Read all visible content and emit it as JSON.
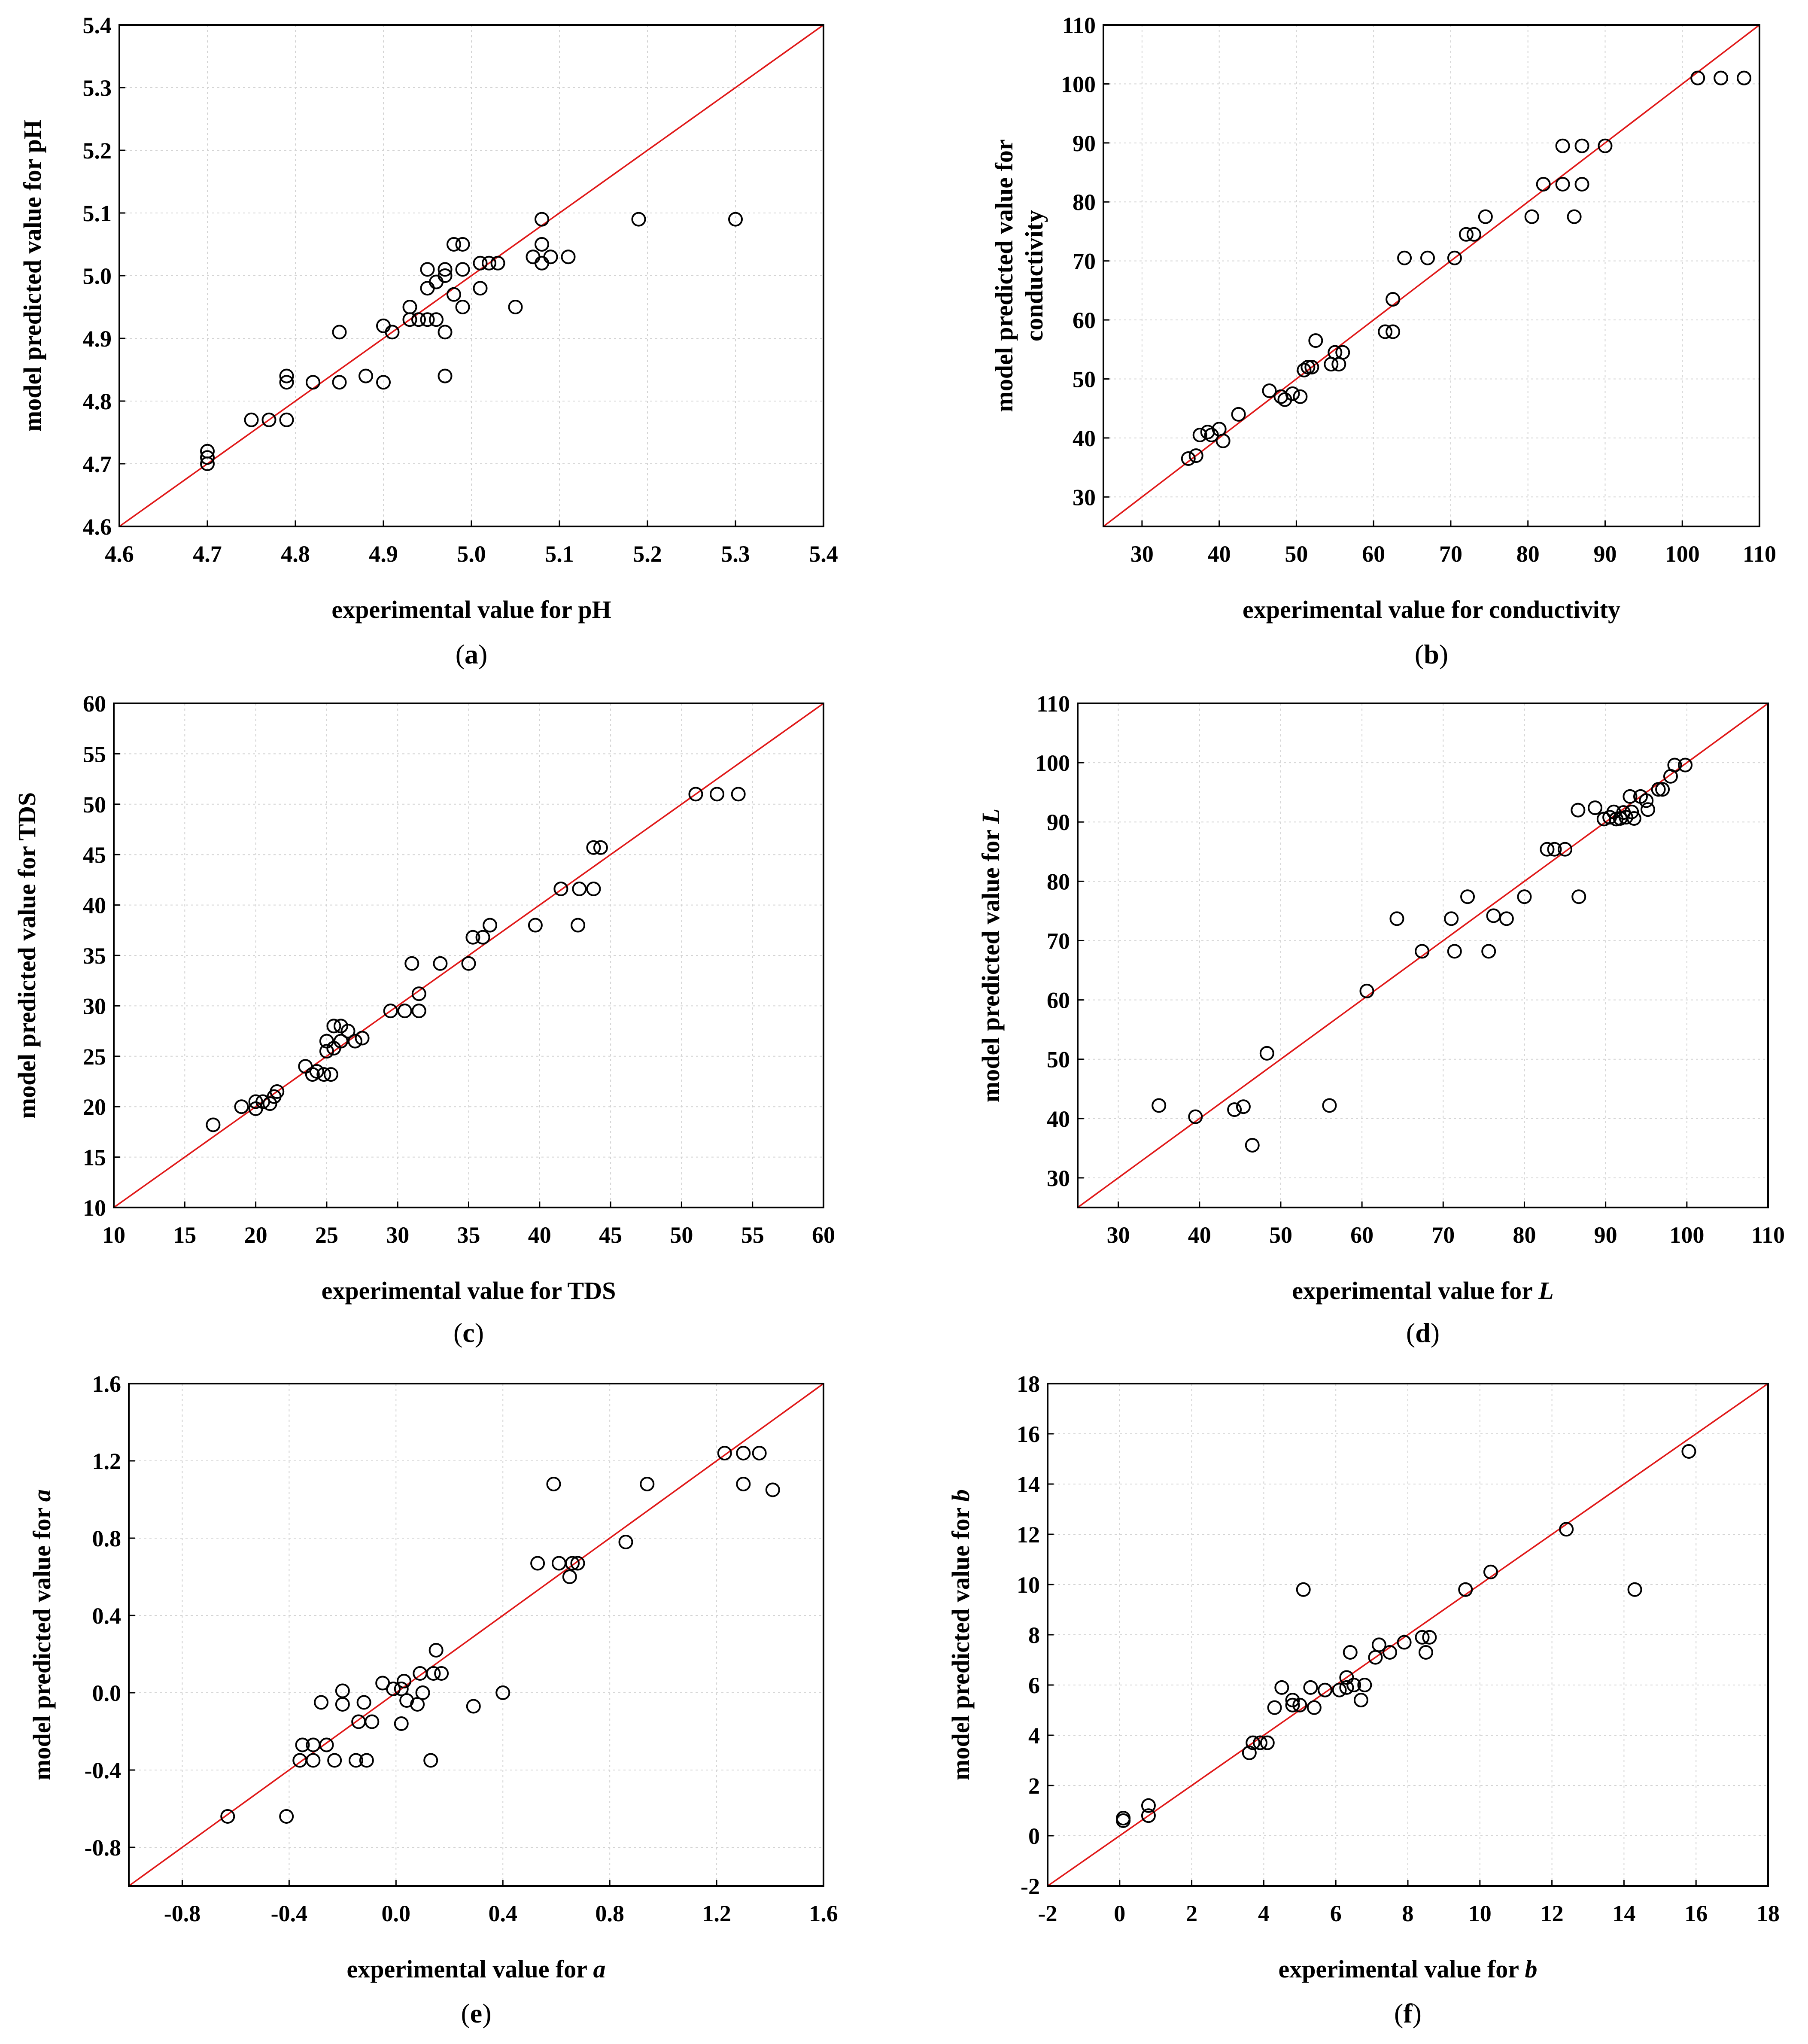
{
  "chart_data": [
    {
      "type": "scatter",
      "caption": "a",
      "xlabel": "experimental value for pH",
      "ylabel": "model predicted value for pH",
      "xlim": [
        4.6,
        5.4
      ],
      "ylim": [
        4.6,
        5.4
      ],
      "xticks": [
        "4.6",
        "4.7",
        "4.8",
        "4.9",
        "5.0",
        "5.1",
        "5.2",
        "5.3",
        "5.4"
      ],
      "yticks": [
        "4.6",
        "4.7",
        "4.8",
        "4.9",
        "5.0",
        "5.1",
        "5.2",
        "5.3",
        "5.4"
      ],
      "grid": true,
      "reference_line": "y = x",
      "points": [
        [
          4.7,
          4.7
        ],
        [
          4.7,
          4.71
        ],
        [
          4.7,
          4.72
        ],
        [
          4.75,
          4.77
        ],
        [
          4.77,
          4.77
        ],
        [
          4.79,
          4.77
        ],
        [
          4.79,
          4.83
        ],
        [
          4.79,
          4.84
        ],
        [
          4.82,
          4.83
        ],
        [
          4.85,
          4.83
        ],
        [
          4.85,
          4.91
        ],
        [
          4.88,
          4.84
        ],
        [
          4.9,
          4.83
        ],
        [
          4.9,
          4.92
        ],
        [
          4.91,
          4.91
        ],
        [
          4.93,
          4.93
        ],
        [
          4.93,
          4.95
        ],
        [
          4.94,
          4.93
        ],
        [
          4.95,
          4.93
        ],
        [
          4.95,
          4.98
        ],
        [
          4.95,
          5.01
        ],
        [
          4.96,
          4.93
        ],
        [
          4.96,
          4.99
        ],
        [
          4.97,
          4.84
        ],
        [
          4.97,
          4.91
        ],
        [
          4.97,
          5.0
        ],
        [
          4.97,
          5.01
        ],
        [
          4.98,
          4.97
        ],
        [
          4.98,
          5.05
        ],
        [
          4.99,
          4.95
        ],
        [
          4.99,
          5.01
        ],
        [
          4.99,
          5.05
        ],
        [
          5.01,
          4.98
        ],
        [
          5.01,
          5.02
        ],
        [
          5.02,
          5.02
        ],
        [
          5.03,
          5.02
        ],
        [
          5.05,
          4.95
        ],
        [
          5.07,
          5.03
        ],
        [
          5.08,
          5.02
        ],
        [
          5.08,
          5.05
        ],
        [
          5.08,
          5.09
        ],
        [
          5.09,
          5.03
        ],
        [
          5.11,
          5.03
        ],
        [
          5.19,
          5.09
        ],
        [
          5.3,
          5.09
        ]
      ]
    },
    {
      "type": "scatter",
      "caption": "b",
      "xlabel": "experimental value for conductivity",
      "ylabel": "model predicted value for conductivity",
      "ylabel_lines": [
        "model predicted value for",
        "conductivity"
      ],
      "xlim": [
        25,
        110
      ],
      "ylim": [
        25,
        110
      ],
      "xticks": [
        "30",
        "40",
        "50",
        "60",
        "70",
        "80",
        "90",
        "100",
        "110"
      ],
      "yticks": [
        "30",
        "40",
        "50",
        "60",
        "70",
        "80",
        "90",
        "100",
        "110"
      ],
      "grid": true,
      "reference_line": "y = x",
      "points": [
        [
          36,
          36.5
        ],
        [
          37,
          37
        ],
        [
          37.5,
          40.5
        ],
        [
          38.5,
          41
        ],
        [
          39,
          40.5
        ],
        [
          40,
          41.5
        ],
        [
          40.5,
          39.5
        ],
        [
          42.5,
          44
        ],
        [
          46.5,
          48
        ],
        [
          48,
          47
        ],
        [
          48.5,
          46.5
        ],
        [
          49.5,
          47.5
        ],
        [
          50.5,
          47
        ],
        [
          51,
          51.5
        ],
        [
          51.5,
          52
        ],
        [
          52,
          52
        ],
        [
          52.5,
          56.5
        ],
        [
          54.5,
          52.5
        ],
        [
          55,
          54.5
        ],
        [
          55.5,
          52.5
        ],
        [
          56,
          54.5
        ],
        [
          61.5,
          58
        ],
        [
          62.5,
          58
        ],
        [
          62.5,
          63.5
        ],
        [
          64,
          70.5
        ],
        [
          67,
          70.5
        ],
        [
          70.5,
          70.5
        ],
        [
          72,
          74.5
        ],
        [
          73,
          74.5
        ],
        [
          74.5,
          77.5
        ],
        [
          80.5,
          77.5
        ],
        [
          82,
          83
        ],
        [
          84.5,
          83
        ],
        [
          84.5,
          89.5
        ],
        [
          86,
          77.5
        ],
        [
          87,
          83
        ],
        [
          87,
          89.5
        ],
        [
          90,
          89.5
        ],
        [
          102,
          101
        ],
        [
          105,
          101
        ],
        [
          108,
          101
        ]
      ]
    },
    {
      "type": "scatter",
      "caption": "c",
      "xlabel": "experimental value for TDS",
      "ylabel": "model predicted value for TDS",
      "xlim": [
        10,
        60
      ],
      "ylim": [
        10,
        60
      ],
      "xticks": [
        "10",
        "15",
        "20",
        "25",
        "30",
        "35",
        "40",
        "45",
        "50",
        "55",
        "60"
      ],
      "yticks": [
        "10",
        "15",
        "20",
        "25",
        "30",
        "35",
        "40",
        "45",
        "50",
        "55",
        "60"
      ],
      "grid": true,
      "reference_line": "y = x",
      "points": [
        [
          17,
          18.2
        ],
        [
          19,
          20
        ],
        [
          20,
          19.8
        ],
        [
          20,
          20.5
        ],
        [
          20.5,
          20.5
        ],
        [
          21,
          20.3
        ],
        [
          21.3,
          21
        ],
        [
          21.5,
          21.5
        ],
        [
          23.5,
          24
        ],
        [
          24,
          23.2
        ],
        [
          24.3,
          23.5
        ],
        [
          24.8,
          23.2
        ],
        [
          25,
          25.5
        ],
        [
          25,
          26.5
        ],
        [
          25.3,
          23.2
        ],
        [
          25.5,
          25.8
        ],
        [
          25.5,
          28
        ],
        [
          26,
          28
        ],
        [
          26,
          26.5
        ],
        [
          26.5,
          27.5
        ],
        [
          27,
          26.5
        ],
        [
          27.5,
          26.8
        ],
        [
          29.5,
          29.5
        ],
        [
          30.5,
          29.5
        ],
        [
          31,
          34.2
        ],
        [
          31.5,
          29.5
        ],
        [
          31.5,
          31.2
        ],
        [
          33,
          34.2
        ],
        [
          35,
          34.2
        ],
        [
          35.3,
          36.8
        ],
        [
          36,
          36.8
        ],
        [
          36.5,
          38
        ],
        [
          39.7,
          38
        ],
        [
          41.5,
          41.6
        ],
        [
          42.7,
          38
        ],
        [
          42.8,
          41.6
        ],
        [
          43.8,
          41.6
        ],
        [
          43.8,
          45.7
        ],
        [
          44.3,
          45.7
        ],
        [
          51,
          51
        ],
        [
          52.5,
          51
        ],
        [
          54,
          51
        ]
      ]
    },
    {
      "type": "scatter",
      "caption": "d",
      "xlabel_prefix": "experimental value for ",
      "xlabel_var": "L",
      "ylabel_prefix": "model predicted value for ",
      "ylabel_var": "L",
      "xlim": [
        25,
        110
      ],
      "ylim": [
        25,
        110
      ],
      "xticks": [
        "30",
        "40",
        "50",
        "60",
        "70",
        "80",
        "90",
        "100",
        "110"
      ],
      "yticks": [
        "30",
        "40",
        "50",
        "60",
        "70",
        "80",
        "90",
        "100",
        "110"
      ],
      "grid": true,
      "reference_line": "y = x",
      "points": [
        [
          35,
          42.2
        ],
        [
          39.5,
          40.3
        ],
        [
          44.3,
          41.5
        ],
        [
          45.4,
          42
        ],
        [
          46.5,
          35.5
        ],
        [
          48.3,
          51
        ],
        [
          56,
          42.2
        ],
        [
          60.6,
          61.5
        ],
        [
          64.3,
          73.7
        ],
        [
          67.4,
          68.2
        ],
        [
          71,
          73.7
        ],
        [
          71.4,
          68.2
        ],
        [
          73,
          77.4
        ],
        [
          75.6,
          68.2
        ],
        [
          76.2,
          74.2
        ],
        [
          77.8,
          73.7
        ],
        [
          80,
          77.4
        ],
        [
          82.8,
          85.4
        ],
        [
          83.7,
          85.4
        ],
        [
          85,
          85.4
        ],
        [
          86.6,
          92
        ],
        [
          86.7,
          77.4
        ],
        [
          88.7,
          92.4
        ],
        [
          89.8,
          90.5
        ],
        [
          90.5,
          90.8
        ],
        [
          91,
          91.7
        ],
        [
          91.3,
          90.5
        ],
        [
          91.8,
          90.6
        ],
        [
          92.2,
          91.6
        ],
        [
          92.5,
          90.8
        ],
        [
          93,
          94.3
        ],
        [
          93.2,
          91.7
        ],
        [
          93.5,
          90.6
        ],
        [
          94.3,
          94.3
        ],
        [
          95,
          93.6
        ],
        [
          95.2,
          92.1
        ],
        [
          96.5,
          95.5
        ],
        [
          97,
          95.5
        ],
        [
          98,
          97.7
        ],
        [
          98.5,
          99.6
        ],
        [
          99.8,
          99.6
        ]
      ]
    },
    {
      "type": "scatter",
      "caption": "e",
      "xlabel_prefix": "experimental value for ",
      "xlabel_var": "a",
      "ylabel_prefix": "model predicted value for ",
      "ylabel_var": "a",
      "xlim": [
        -1.0,
        1.6
      ],
      "ylim": [
        -1.0,
        1.6
      ],
      "xticks": [
        "-0.8",
        "-0.4",
        "0.0",
        "0.4",
        "0.8",
        "1.2",
        "1.6"
      ],
      "yticks": [
        "-0.8",
        "-0.4",
        "0.0",
        "0.4",
        "0.8",
        "1.2",
        "1.6"
      ],
      "grid": true,
      "reference_line": "y = x",
      "points": [
        [
          -0.63,
          -0.64
        ],
        [
          -0.41,
          -0.64
        ],
        [
          -0.36,
          -0.35
        ],
        [
          -0.35,
          -0.27
        ],
        [
          -0.31,
          -0.35
        ],
        [
          -0.31,
          -0.27
        ],
        [
          -0.28,
          -0.05
        ],
        [
          -0.26,
          -0.27
        ],
        [
          -0.23,
          -0.35
        ],
        [
          -0.2,
          0.01
        ],
        [
          -0.2,
          -0.06
        ],
        [
          -0.15,
          -0.35
        ],
        [
          -0.14,
          -0.15
        ],
        [
          -0.12,
          -0.05
        ],
        [
          -0.11,
          -0.35
        ],
        [
          -0.09,
          -0.15
        ],
        [
          -0.05,
          0.05
        ],
        [
          -0.01,
          0.02
        ],
        [
          0.02,
          -0.16
        ],
        [
          0.02,
          0.02
        ],
        [
          0.03,
          0.06
        ],
        [
          0.04,
          -0.04
        ],
        [
          0.08,
          -0.06
        ],
        [
          0.09,
          0.1
        ],
        [
          0.1,
          0.0
        ],
        [
          0.13,
          -0.35
        ],
        [
          0.14,
          0.1
        ],
        [
          0.15,
          0.22
        ],
        [
          0.17,
          0.1
        ],
        [
          0.29,
          -0.07
        ],
        [
          0.4,
          0.0
        ],
        [
          0.53,
          0.67
        ],
        [
          0.59,
          1.08
        ],
        [
          0.61,
          0.67
        ],
        [
          0.65,
          0.6
        ],
        [
          0.66,
          0.67
        ],
        [
          0.68,
          0.67
        ],
        [
          0.86,
          0.78
        ],
        [
          0.94,
          1.08
        ],
        [
          1.23,
          1.24
        ],
        [
          1.3,
          1.24
        ],
        [
          1.3,
          1.08
        ],
        [
          1.36,
          1.24
        ],
        [
          1.41,
          1.05
        ]
      ]
    },
    {
      "type": "scatter",
      "caption": "f",
      "xlabel_prefix": "experimental value for ",
      "xlabel_var": "b",
      "ylabel_prefix": "model predicted value for ",
      "ylabel_var": "b",
      "xlim": [
        -2,
        18
      ],
      "ylim": [
        -2,
        18
      ],
      "xticks": [
        "-2",
        "0",
        "2",
        "4",
        "6",
        "8",
        "10",
        "12",
        "14",
        "16",
        "18"
      ],
      "yticks": [
        "-2",
        "0",
        "2",
        "4",
        "6",
        "8",
        "10",
        "12",
        "14",
        "16",
        "18"
      ],
      "grid": true,
      "reference_line": "y = x",
      "points": [
        [
          0.1,
          0.6
        ],
        [
          0.1,
          0.7
        ],
        [
          0.8,
          1.2
        ],
        [
          0.8,
          0.8
        ],
        [
          3.6,
          3.3
        ],
        [
          3.7,
          3.7
        ],
        [
          3.9,
          3.7
        ],
        [
          4.1,
          3.7
        ],
        [
          4.3,
          5.1
        ],
        [
          4.5,
          5.9
        ],
        [
          4.8,
          5.2
        ],
        [
          4.8,
          5.4
        ],
        [
          5.0,
          5.2
        ],
        [
          5.1,
          9.8
        ],
        [
          5.3,
          5.9
        ],
        [
          5.4,
          5.1
        ],
        [
          5.7,
          5.8
        ],
        [
          6.1,
          5.8
        ],
        [
          6.3,
          5.9
        ],
        [
          6.3,
          6.3
        ],
        [
          6.4,
          7.3
        ],
        [
          6.5,
          6.0
        ],
        [
          6.7,
          5.4
        ],
        [
          6.8,
          6.0
        ],
        [
          7.1,
          7.1
        ],
        [
          7.2,
          7.6
        ],
        [
          7.5,
          7.3
        ],
        [
          7.9,
          7.7
        ],
        [
          8.4,
          7.9
        ],
        [
          8.5,
          7.3
        ],
        [
          8.6,
          7.9
        ],
        [
          9.6,
          9.8
        ],
        [
          10.3,
          10.5
        ],
        [
          12.4,
          12.2
        ],
        [
          14.3,
          9.8
        ],
        [
          15.8,
          15.3
        ]
      ]
    }
  ]
}
